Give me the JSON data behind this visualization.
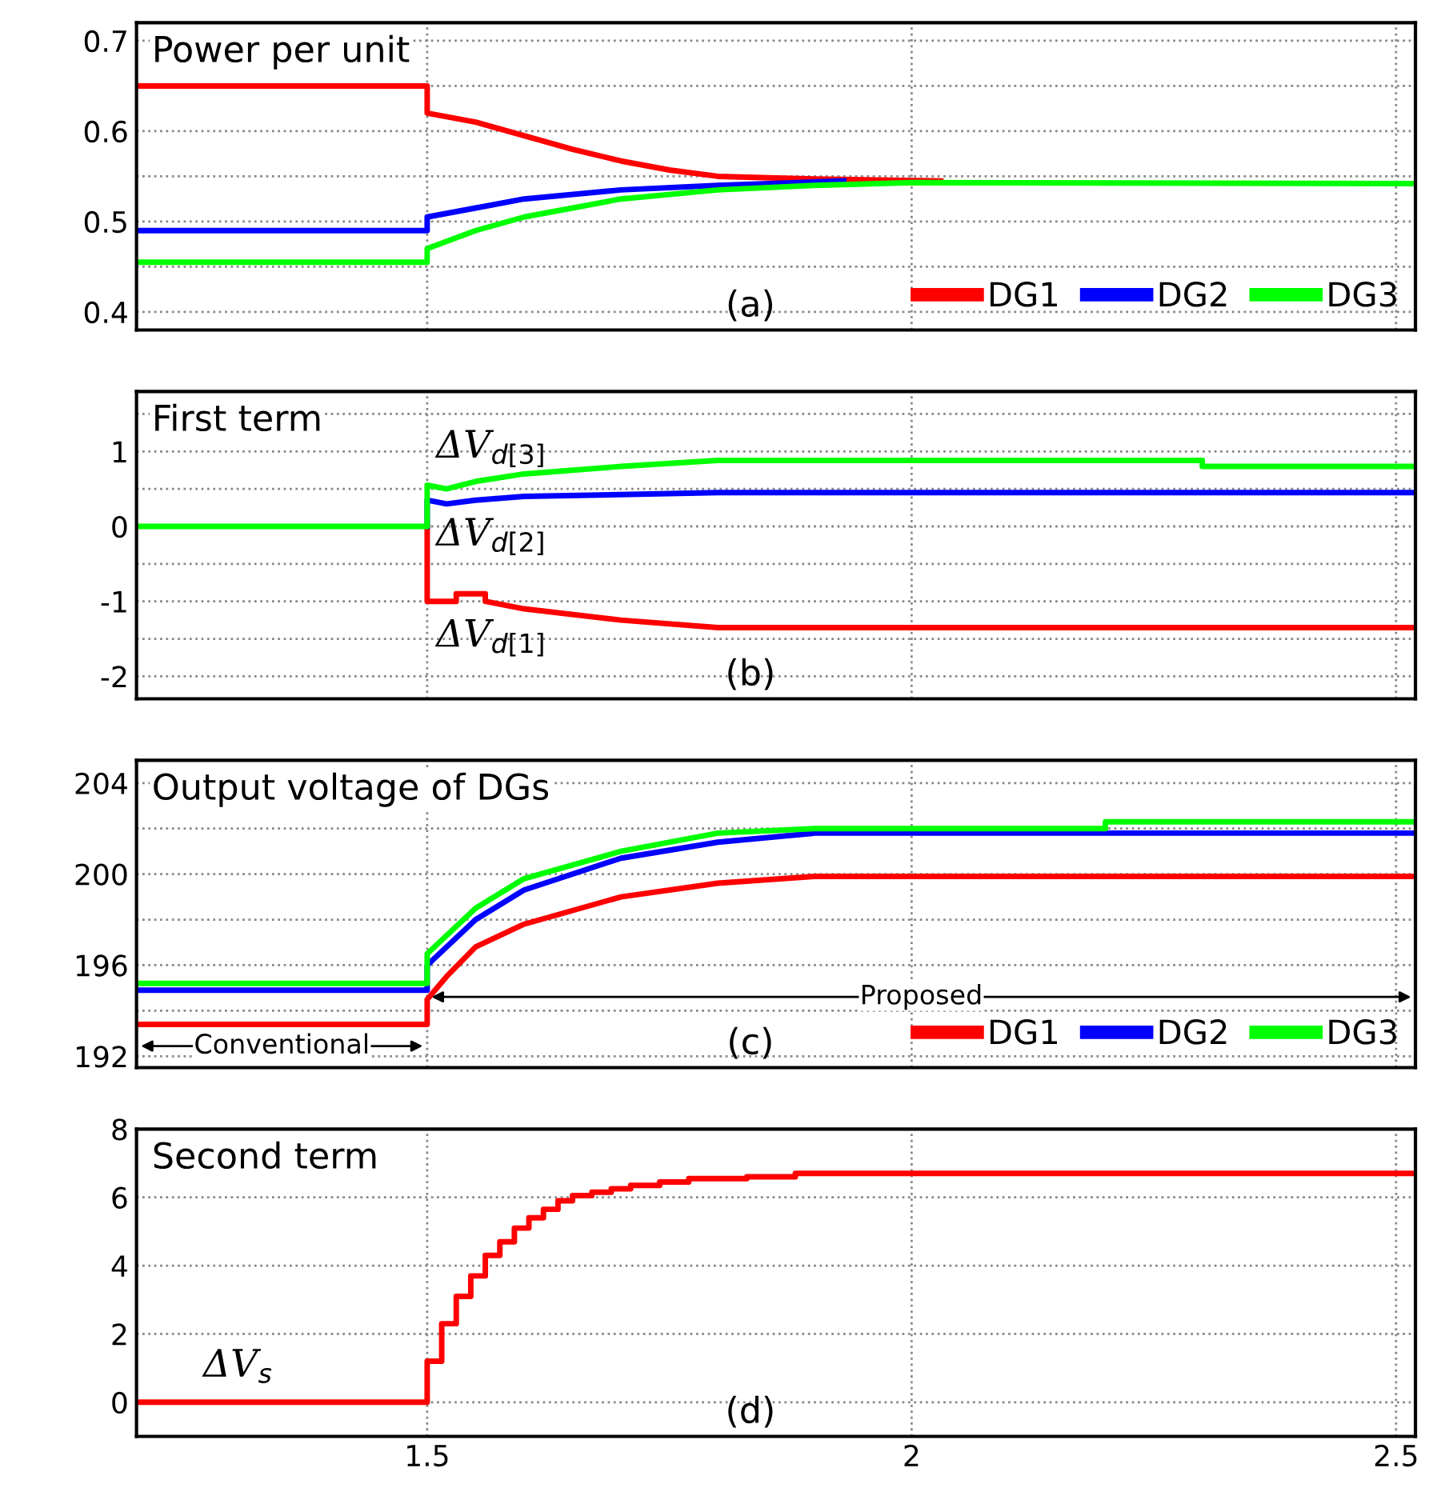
{
  "chart_data": [
    {
      "type": "line",
      "title": "Power per unit",
      "xlim": [
        1.2,
        2.52
      ],
      "ylim": [
        0.38,
        0.72
      ],
      "xticks": [
        1.5,
        2,
        2.5
      ],
      "yticks": [
        0.4,
        {
          "value": 0.45,
          "label": null
        },
        0.5,
        {
          "value": 0.55,
          "label": null
        },
        0.6,
        {
          "value": 0.65,
          "label": null
        },
        0.7
      ],
      "tick_labels": "y",
      "grid": true,
      "legend": "bottom right",
      "line_style": "solid",
      "annotations": [
        "(a)"
      ],
      "series": [
        {
          "name": "DG1",
          "color": "#ff0000",
          "x": [
            1.2,
            1.5,
            1.5,
            1.55,
            1.6,
            1.65,
            1.7,
            1.75,
            1.8,
            1.9,
            2.03
          ],
          "values": [
            0.65,
            0.65,
            0.62,
            0.61,
            0.595,
            0.58,
            0.567,
            0.557,
            0.55,
            0.547,
            0.545
          ]
        },
        {
          "name": "DG2",
          "color": "#0000ff",
          "x": [
            1.2,
            1.5,
            1.5,
            1.55,
            1.6,
            1.7,
            1.8,
            1.93
          ],
          "values": [
            0.49,
            0.49,
            0.505,
            0.515,
            0.525,
            0.535,
            0.54,
            0.545
          ]
        },
        {
          "name": "DG3",
          "color": "#00ff00",
          "x": [
            1.2,
            1.5,
            1.5,
            1.55,
            1.6,
            1.65,
            1.7,
            1.8,
            1.9,
            2.0,
            2.52
          ],
          "values": [
            0.455,
            0.455,
            0.47,
            0.49,
            0.505,
            0.515,
            0.525,
            0.535,
            0.54,
            0.543,
            0.542
          ]
        }
      ]
    },
    {
      "type": "line",
      "title": "First term",
      "xlim": [
        1.2,
        2.52
      ],
      "ylim": [
        -2.3,
        1.8
      ],
      "xticks": [
        1.5,
        2,
        2.5
      ],
      "yticks": [
        -2,
        {
          "value": -1.5,
          "label": null
        },
        -1,
        {
          "value": -0.5,
          "label": null
        },
        0,
        {
          "value": 0.5,
          "label": null
        },
        1,
        {
          "value": 1.5,
          "label": null
        }
      ],
      "tick_labels": "y",
      "grid": true,
      "line_style": "solid",
      "annotations": [
        "(b)"
      ],
      "series": [
        {
          "name": "ΔV$_{d[1]}$",
          "color": "#ff0000",
          "x": [
            1.5,
            1.5,
            1.53,
            1.53,
            1.56,
            1.56,
            1.6,
            1.7,
            1.8,
            2.52
          ],
          "values": [
            0,
            -1.0,
            -1.0,
            -0.9,
            -0.9,
            -1.0,
            -1.1,
            -1.25,
            -1.35,
            -1.35
          ]
        },
        {
          "name": "ΔV$_{d[2]}$",
          "color": "#0000ff",
          "x": [
            1.5,
            1.5,
            1.52,
            1.55,
            1.6,
            1.8,
            2.52
          ],
          "values": [
            0,
            0.35,
            0.3,
            0.35,
            0.4,
            0.45,
            0.45
          ]
        },
        {
          "name": "ΔV$_{d[3]}$",
          "color": "#00ff00",
          "x": [
            1.2,
            1.5,
            1.5,
            1.52,
            1.55,
            1.6,
            1.7,
            1.8,
            2.3,
            2.3,
            2.52
          ],
          "values": [
            0,
            0,
            0.55,
            0.5,
            0.6,
            0.7,
            0.8,
            0.88,
            0.88,
            0.8,
            0.8
          ]
        }
      ]
    },
    {
      "type": "line",
      "title": "Output voltage of DGs",
      "xlim": [
        1.2,
        2.52
      ],
      "ylim": [
        191.5,
        205
      ],
      "xticks": [
        1.5,
        2,
        2.5
      ],
      "yticks": [
        192,
        {
          "value": 194,
          "label": null
        },
        196,
        {
          "value": 198,
          "label": null
        },
        200,
        {
          "value": 202,
          "label": null
        },
        204
      ],
      "tick_labels": "y",
      "grid": true,
      "legend": "bottom right",
      "line_style": "solid",
      "annotations": [
        "(c)",
        "Conventional",
        "Proposed"
      ],
      "series": [
        {
          "name": "DG1",
          "color": "#ff0000",
          "x": [
            1.2,
            1.5,
            1.5,
            1.52,
            1.55,
            1.6,
            1.7,
            1.8,
            1.9,
            2.52
          ],
          "values": [
            193.4,
            193.4,
            194.5,
            195.5,
            196.8,
            197.8,
            199.0,
            199.6,
            199.9,
            199.9
          ]
        },
        {
          "name": "DG2",
          "color": "#0000ff",
          "x": [
            1.2,
            1.5,
            1.5,
            1.55,
            1.6,
            1.7,
            1.8,
            1.9,
            2.52
          ],
          "values": [
            194.9,
            194.9,
            196.0,
            198.0,
            199.3,
            200.7,
            201.4,
            201.8,
            201.8
          ]
        },
        {
          "name": "DG3",
          "color": "#00ff00",
          "x": [
            1.2,
            1.5,
            1.5,
            1.55,
            1.6,
            1.7,
            1.8,
            1.9,
            2.2,
            2.2,
            2.52
          ],
          "values": [
            195.2,
            195.2,
            196.5,
            198.5,
            199.8,
            201.0,
            201.8,
            202.0,
            202.0,
            202.3,
            202.3
          ]
        }
      ]
    },
    {
      "type": "step",
      "title": "Second term",
      "xlim": [
        1.2,
        2.52
      ],
      "ylim": [
        -1,
        8
      ],
      "xticks": [
        1.5,
        2,
        2.5
      ],
      "yticks": [
        0,
        2,
        4,
        6,
        8
      ],
      "grid": true,
      "line_style": "solid",
      "annotations": [
        "(d)"
      ],
      "series": [
        {
          "name": "ΔV$_{s}$",
          "color": "#ff0000",
          "x": [
            1.2,
            1.5,
            1.515,
            1.53,
            1.545,
            1.56,
            1.575,
            1.59,
            1.605,
            1.62,
            1.635,
            1.65,
            1.67,
            1.69,
            1.71,
            1.74,
            1.77,
            1.83,
            1.88,
            2.52
          ],
          "values": [
            0,
            1.2,
            2.3,
            3.1,
            3.7,
            4.3,
            4.7,
            5.1,
            5.4,
            5.65,
            5.9,
            6.05,
            6.15,
            6.25,
            6.35,
            6.45,
            6.55,
            6.6,
            6.7,
            6.7
          ]
        }
      ]
    }
  ]
}
